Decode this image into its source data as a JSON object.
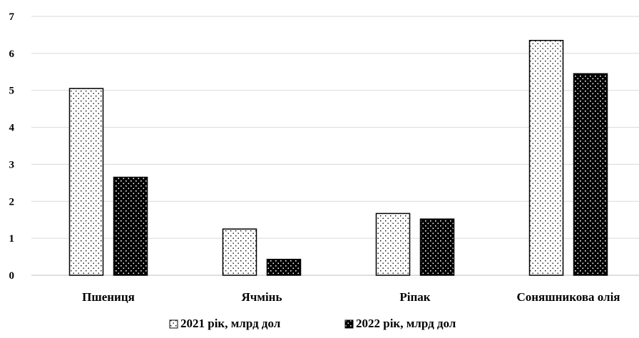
{
  "chart_data": {
    "type": "bar",
    "categories": [
      "Пшениця",
      "Ячмінь",
      "Ріпак",
      "Соняшникова олія"
    ],
    "series": [
      {
        "name": "2021 рік, млрд дол",
        "values": [
          5.05,
          1.25,
          1.67,
          6.35
        ],
        "pattern": "dotted-light",
        "fill": "#ffffff",
        "dot": "#000000"
      },
      {
        "name": "2022 рік, млрд дол",
        "values": [
          2.65,
          0.43,
          1.52,
          5.45
        ],
        "pattern": "dotted-dark",
        "fill": "#000000",
        "dot": "#ffffff"
      }
    ],
    "ylim": [
      0,
      7
    ],
    "yticks": [
      "0",
      "1",
      "2",
      "3",
      "4",
      "5",
      "6",
      "7"
    ],
    "grid": true,
    "legend_position": "bottom",
    "title": "",
    "xlabel": "",
    "ylabel": ""
  }
}
